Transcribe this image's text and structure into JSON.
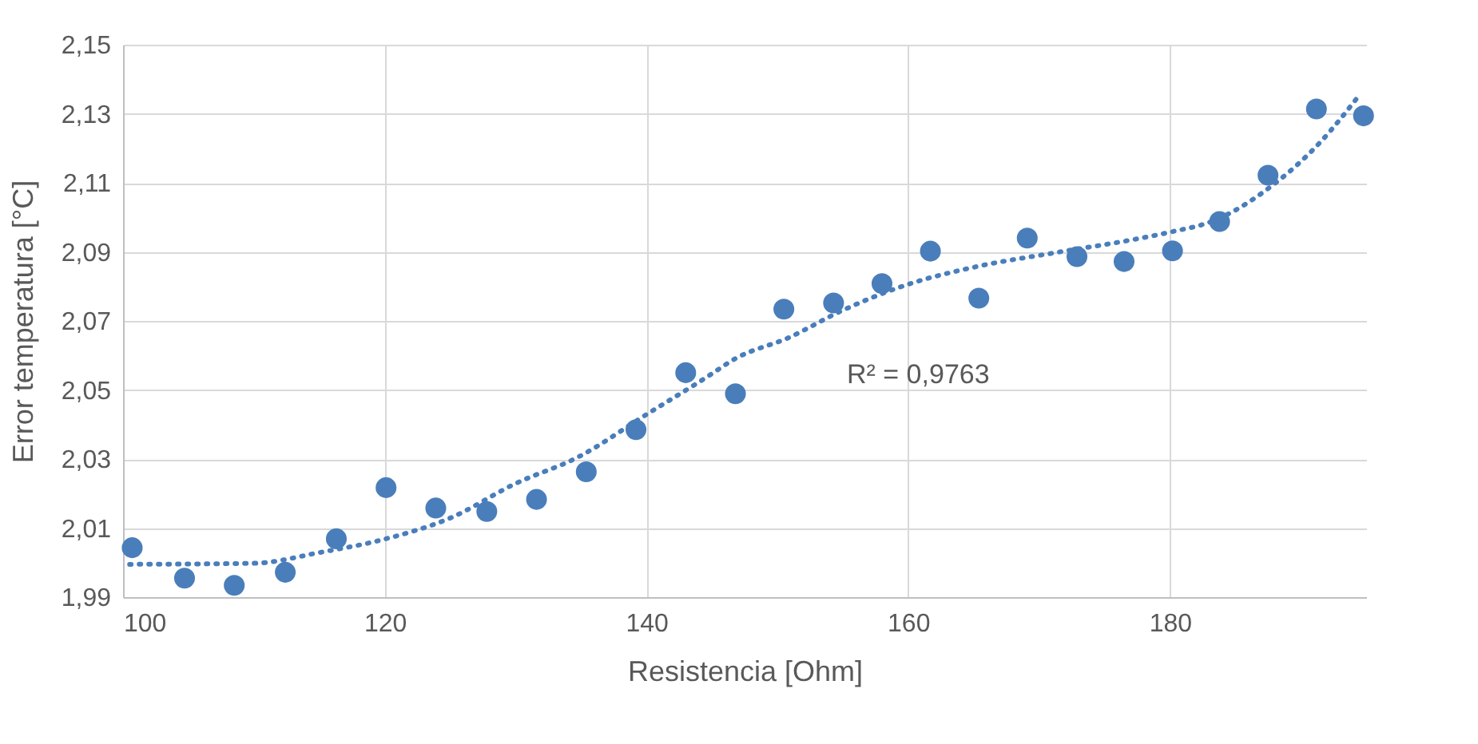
{
  "chart_data": {
    "type": "scatter",
    "xlabel": "Resistencia [Ohm]",
    "ylabel": "Error temperatura [°C]",
    "xlim": [
      100,
      195
    ],
    "xticks": [
      100,
      120,
      140,
      160,
      180
    ],
    "ylim": [
      1.99,
      2.15
    ],
    "yticks": [
      {
        "value": 1.99,
        "label": "1,99"
      },
      {
        "value": 2.01,
        "label": "2,01"
      },
      {
        "value": 2.03,
        "label": "2,03"
      },
      {
        "value": 2.05,
        "label": "2,05"
      },
      {
        "value": 2.07,
        "label": "2,07"
      },
      {
        "value": 2.09,
        "label": "2,09"
      },
      {
        "value": 2.11,
        "label": "2,11"
      },
      {
        "value": 2.13,
        "label": "2,13"
      },
      {
        "value": 2.15,
        "label": "2,15"
      }
    ],
    "grid": true,
    "legend": false,
    "series": [
      {
        "color": "#4a7ebb",
        "marker": "circle",
        "x": [
          100.7,
          104.7,
          108.5,
          112.4,
          116.3,
          120.1,
          123.9,
          127.8,
          131.6,
          135.4,
          139.2,
          143.0,
          146.8,
          150.5,
          154.3,
          158.0,
          161.7,
          165.4,
          169.1,
          172.9,
          176.5,
          180.2,
          183.8,
          187.5,
          191.2,
          194.8
        ],
        "values": [
          2.0043,
          1.9955,
          1.9934,
          1.9972,
          2.0069,
          2.0217,
          2.0158,
          2.0148,
          2.0183,
          2.0263,
          2.0385,
          2.055,
          2.0489,
          2.0734,
          2.0752,
          2.0808,
          2.0902,
          2.0766,
          2.094,
          2.0886,
          2.0872,
          2.0903,
          2.0988,
          2.1122,
          2.1314,
          2.1294
        ]
      },
      {
        "type": "line",
        "color": "#4a7ebb",
        "line_style": "dotted",
        "marker": "none",
        "x": [
          100.5,
          110,
          115,
          120,
          125,
          130,
          134.8,
          140,
          144.6,
          146.8,
          150.9,
          154.9,
          160,
          165.2,
          171.3,
          177.4,
          180,
          183.4,
          187.5,
          191.6,
          194.5
        ],
        "values": [
          1.9995,
          1.9998,
          2.0029,
          2.0068,
          2.0129,
          2.0229,
          2.0306,
          2.0429,
          2.0537,
          2.0591,
          2.0652,
          2.0729,
          2.0806,
          2.0857,
          2.0898,
          2.0937,
          2.0957,
          2.0991,
          2.1083,
          2.1222,
          2.1355
        ]
      }
    ],
    "annotations": [
      "R² = 0,9763"
    ]
  }
}
